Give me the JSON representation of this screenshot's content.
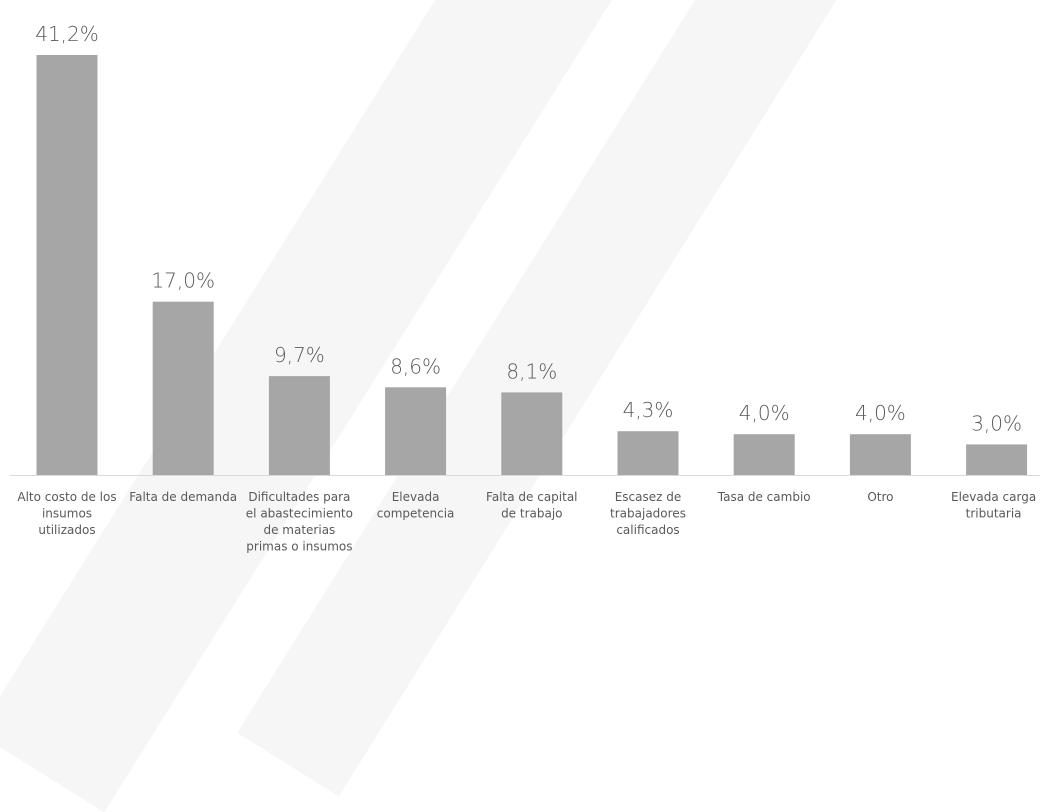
{
  "chart_data": {
    "type": "bar",
    "title": "",
    "xlabel": "",
    "ylabel": "",
    "ylim": [
      0,
      45
    ],
    "grid": false,
    "legend": "none",
    "bar_color": "#a6a6a6",
    "categories": [
      "Alto costo de los insumos utilizados",
      "Falta de demanda",
      "Dificultades para el abastecimiento de materias primas o insumos",
      "Elevada competencia",
      "Falta de capital de trabajo",
      "Escasez de trabajadores calificados",
      "Tasa de cambio",
      "Otro",
      "Elevada carga tributaria"
    ],
    "category_lines": [
      [
        "Alto costo de los",
        "insumos",
        "utilizados"
      ],
      [
        "Falta de demanda"
      ],
      [
        "Dificultades para",
        "el abastecimiento",
        "de materias",
        "primas o insumos"
      ],
      [
        "Elevada",
        "competencia"
      ],
      [
        "Falta de capital",
        "de trabajo"
      ],
      [
        "Escasez de",
        "trabajadores",
        "calificados"
      ],
      [
        "Tasa de cambio"
      ],
      [
        "Otro"
      ],
      [
        "Elevada carga",
        "tributaria"
      ]
    ],
    "values": [
      41.2,
      17.0,
      9.7,
      8.6,
      8.1,
      4.3,
      4.0,
      4.0,
      3.0
    ],
    "value_labels": [
      "41,2%",
      "17,0%",
      "9,7%",
      "8,6%",
      "8,1%",
      "4,3%",
      "4,0%",
      "4,0%",
      "3,0%"
    ]
  }
}
